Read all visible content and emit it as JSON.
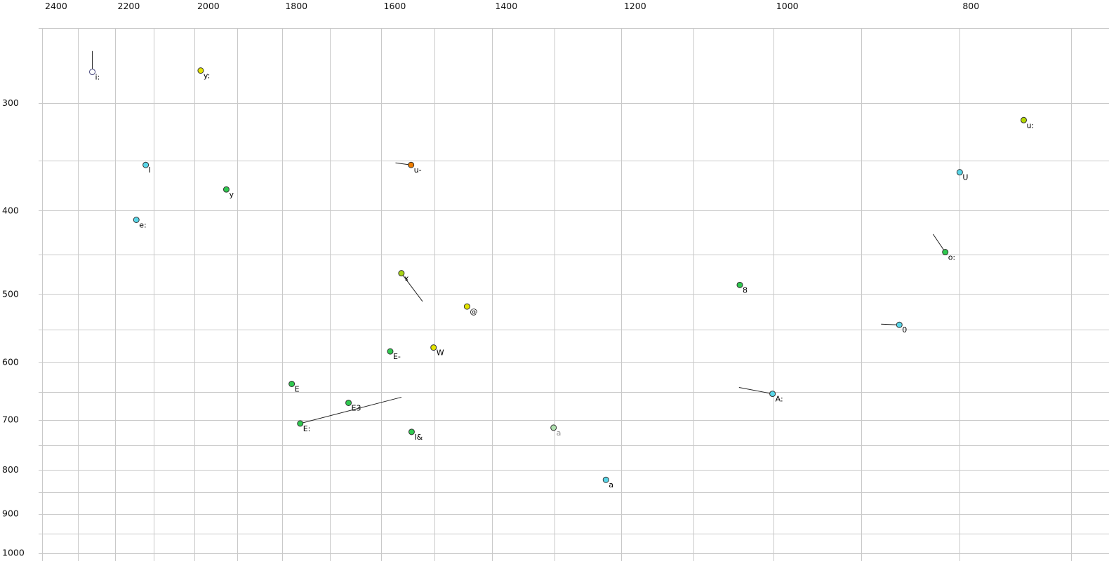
{
  "chart_data": {
    "type": "scatter",
    "title": "",
    "description": "Vowel formant scatter plot: F2 on top axis (reversed, log scale), F1 on left axis (increasing downward, log scale). Points are labelled vowel symbols, some with short trajectory tail lines.",
    "grid_color": "#c9c9c9",
    "tail_color": "#222222",
    "x_axis": {
      "position": "top",
      "direction": "reversed",
      "scale": "log",
      "range": [
        2450,
        700
      ],
      "tick_labels": [
        2400,
        2200,
        2000,
        1800,
        1600,
        1400,
        1200,
        1000,
        800
      ],
      "gridlines": [
        2400,
        2300,
        2200,
        2100,
        2000,
        1900,
        1800,
        1700,
        1600,
        1500,
        1400,
        1300,
        1200,
        1100,
        1000,
        900,
        800,
        700
      ]
    },
    "y_axis": {
      "position": "left",
      "direction": "down",
      "scale": "log",
      "range": [
        250,
        1030
      ],
      "tick_labels": [
        300,
        400,
        500,
        600,
        700,
        800,
        900,
        1000
      ],
      "gridlines": [
        300,
        350,
        400,
        450,
        500,
        550,
        600,
        650,
        700,
        750,
        800,
        850,
        900,
        950,
        1000
      ]
    },
    "points": [
      {
        "label": "i:",
        "f2": 2260,
        "f1": 276,
        "color": "#ffffff",
        "stroke": "#44447a",
        "tail": {
          "f2": 2260,
          "f1": 261
        }
      },
      {
        "label": "y:",
        "f2": 1985,
        "f1": 275,
        "color": "#e4e400"
      },
      {
        "label": "u:",
        "f2": 741,
        "f1": 314,
        "color": "#b4d800"
      },
      {
        "label": "I",
        "f2": 2120,
        "f1": 354,
        "color": "#59d6e8"
      },
      {
        "label": "u-",
        "f2": 1543,
        "f1": 354,
        "color": "#ef7d00",
        "tail": {
          "f2": 1572,
          "f1": 352
        }
      },
      {
        "label": "U",
        "f2": 800,
        "f1": 361,
        "color": "#59d6e8"
      },
      {
        "label": "y",
        "f2": 1925,
        "f1": 378,
        "color": "#2fc94f"
      },
      {
        "label": "e:",
        "f2": 2144,
        "f1": 410,
        "color": "#59d6e8"
      },
      {
        "label": "o:",
        "f2": 814,
        "f1": 447,
        "color": "#2fc94f",
        "tail": {
          "f2": 826,
          "f1": 426
        }
      },
      {
        "label": "ɤ",
        "f2": 1561,
        "f1": 473,
        "color": "#a8d414",
        "tail": {
          "f2": 1522,
          "f1": 510
        }
      },
      {
        "label": "8",
        "f2": 1041,
        "f1": 488,
        "color": "#2fc94f"
      },
      {
        "label": "@",
        "f2": 1443,
        "f1": 517,
        "color": "#e4e400"
      },
      {
        "label": "0",
        "f2": 860,
        "f1": 543,
        "color": "#59d6e8",
        "tail": {
          "f2": 879,
          "f1": 542
        }
      },
      {
        "label": "E-",
        "f2": 1582,
        "f1": 583,
        "color": "#2fc94f"
      },
      {
        "label": "W",
        "f2": 1502,
        "f1": 577,
        "color": "#e4e400"
      },
      {
        "label": "E",
        "f2": 1780,
        "f1": 636,
        "color": "#2fc94f"
      },
      {
        "label": "A:",
        "f2": 1001,
        "f1": 653,
        "color": "#59d6e8",
        "tail": {
          "f2": 1042,
          "f1": 642
        }
      },
      {
        "label": "E3",
        "f2": 1663,
        "f1": 669,
        "color": "#2fc94f"
      },
      {
        "label": "E:",
        "f2": 1762,
        "f1": 707,
        "color": "#2fc94f",
        "tail": {
          "f2": 1561,
          "f1": 659
        }
      },
      {
        "label": "I&",
        "f2": 1542,
        "f1": 723,
        "color": "#2fc94f"
      },
      {
        "label": "a",
        "f2": 1301,
        "f1": 715,
        "color": "#aee0ae",
        "label_color": "#8f8f8f"
      },
      {
        "label": "a",
        "f2": 1222,
        "f1": 822,
        "color": "#59d6e8"
      }
    ]
  }
}
